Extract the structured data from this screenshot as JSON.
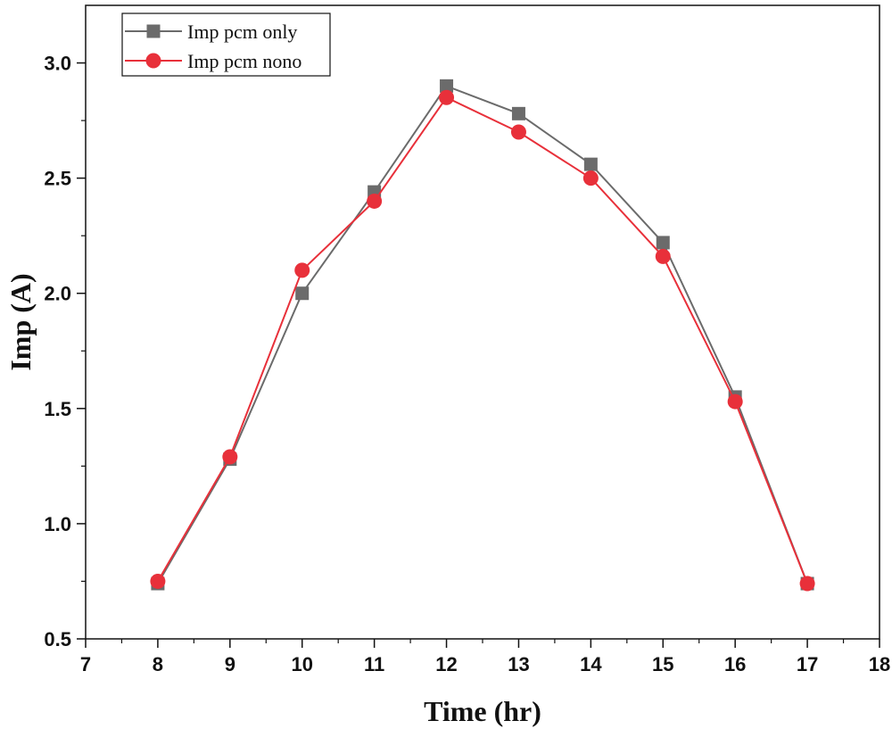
{
  "chart_data": {
    "type": "line",
    "title": "",
    "xlabel": "Time (hr)",
    "ylabel": "Imp (A)",
    "xlim": [
      7,
      18
    ],
    "ylim": [
      0.5,
      3.25
    ],
    "xticks": [
      7,
      8,
      9,
      10,
      11,
      12,
      13,
      14,
      15,
      16,
      17,
      18
    ],
    "yticks": [
      0.5,
      1.0,
      1.5,
      2.0,
      2.5,
      3.0
    ],
    "xtick_labels": [
      "7",
      "8",
      "9",
      "10",
      "11",
      "12",
      "13",
      "14",
      "15",
      "16",
      "17",
      "18"
    ],
    "ytick_labels": [
      "0.5",
      "1.0",
      "1.5",
      "2.0",
      "2.5",
      "3.0"
    ],
    "legend_position": "top-left",
    "x": [
      8,
      9,
      10,
      11,
      12,
      13,
      14,
      15,
      16,
      17
    ],
    "series": [
      {
        "name": "Imp pcm only",
        "marker": "square",
        "color": "#6b6b6b",
        "values": [
          0.74,
          1.28,
          2.0,
          2.44,
          2.9,
          2.78,
          2.56,
          2.22,
          1.55,
          0.74
        ]
      },
      {
        "name": "Imp pcm nono",
        "marker": "circle",
        "color": "#e8303a",
        "values": [
          0.75,
          1.29,
          2.1,
          2.4,
          2.85,
          2.7,
          2.5,
          2.16,
          1.53,
          0.74
        ]
      }
    ]
  }
}
